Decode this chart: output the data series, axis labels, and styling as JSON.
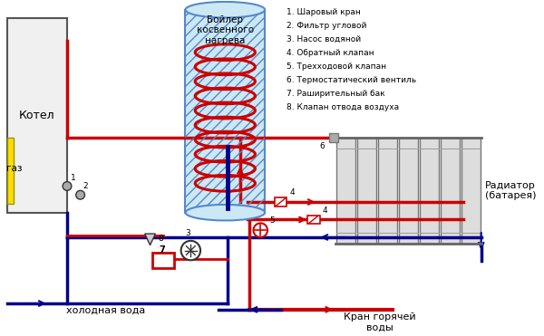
{
  "bg_color": "#ffffff",
  "legend_items": [
    "1. Шаровый кран",
    "2. Фильтр угловой",
    "3. Насос водяной",
    "4. Обратный клапан",
    "5. Трехходовой клапан",
    "6. Термостатический вентиль",
    "7. Раширительный бак",
    "8. Клапан отвода воздуха"
  ],
  "boiler_label": "Бойлер\nкосвенного\nнагрева",
  "kotel_label": "Котел",
  "gaz_label": "газ",
  "radiator_label": "Радиатор\n(батарея)",
  "cold_water_label": "холодная вода",
  "hot_water_label": "Кран горячей\nводы",
  "red": "#cc0000",
  "blue": "#00008b",
  "yellow": "#ffdd00",
  "lw": 2.5
}
